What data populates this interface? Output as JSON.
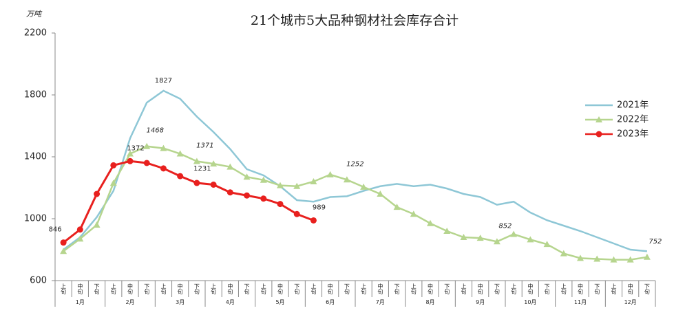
{
  "chart_data": {
    "type": "line",
    "title": "21个城市5大品种钢材社会库存合计",
    "unit": "万吨",
    "categories": [
      "上旬",
      "中旬",
      "下旬",
      "上旬",
      "中旬",
      "下旬",
      "上旬",
      "中旬",
      "下旬",
      "上旬",
      "中旬",
      "下旬",
      "上旬",
      "中旬",
      "下旬",
      "上旬",
      "中旬",
      "下旬",
      "上旬",
      "中旬",
      "下旬",
      "上旬",
      "中旬",
      "下旬",
      "上旬",
      "中旬",
      "下旬",
      "上旬",
      "中旬",
      "下旬",
      "上旬",
      "中旬",
      "下旬",
      "上旬",
      "中旬",
      "下旬"
    ],
    "months": [
      "1月",
      "2月",
      "3月",
      "4月",
      "5月",
      "6月",
      "7月",
      "8月",
      "9月",
      "10月",
      "11月",
      "12月"
    ],
    "ylim": [
      600,
      2200
    ],
    "yticks": [
      600,
      1000,
      1400,
      1800,
      2200
    ],
    "grid": false,
    "legend": "right",
    "series": [
      {
        "name": "2021年",
        "color": "#8ec7d6",
        "marker": "none",
        "values": [
          800,
          880,
          1010,
          1180,
          1520,
          1750,
          1827,
          1775,
          1660,
          1560,
          1450,
          1320,
          1280,
          1210,
          1120,
          1110,
          1140,
          1145,
          1180,
          1210,
          1225,
          1210,
          1220,
          1195,
          1160,
          1140,
          1090,
          1110,
          1040,
          990,
          955,
          920,
          880,
          840,
          800,
          790
        ],
        "labels_at": [
          6
        ]
      },
      {
        "name": "2022年",
        "color": "#b6d58e",
        "marker": "triangle",
        "values": [
          790,
          870,
          960,
          1230,
          1420,
          1468,
          1455,
          1420,
          1371,
          1355,
          1335,
          1270,
          1250,
          1215,
          1210,
          1240,
          1285,
          1252,
          1205,
          1160,
          1075,
          1030,
          970,
          920,
          880,
          875,
          852,
          900,
          865,
          835,
          775,
          745,
          740,
          735,
          735,
          752
        ],
        "labels_at": [
          5,
          8,
          17,
          26,
          35
        ]
      },
      {
        "name": "2023年",
        "color": "#e8201e",
        "marker": "circle",
        "values": [
          846,
          930,
          1160,
          1345,
          1372,
          1360,
          1325,
          1275,
          1231,
          1220,
          1170,
          1150,
          1130,
          1095,
          1030,
          989,
          null,
          null,
          null,
          null,
          null,
          null,
          null,
          null,
          null,
          null,
          null,
          null,
          null,
          null,
          null,
          null,
          null,
          null,
          null,
          null
        ],
        "labels_at": [
          0,
          4,
          8,
          15
        ]
      }
    ]
  }
}
